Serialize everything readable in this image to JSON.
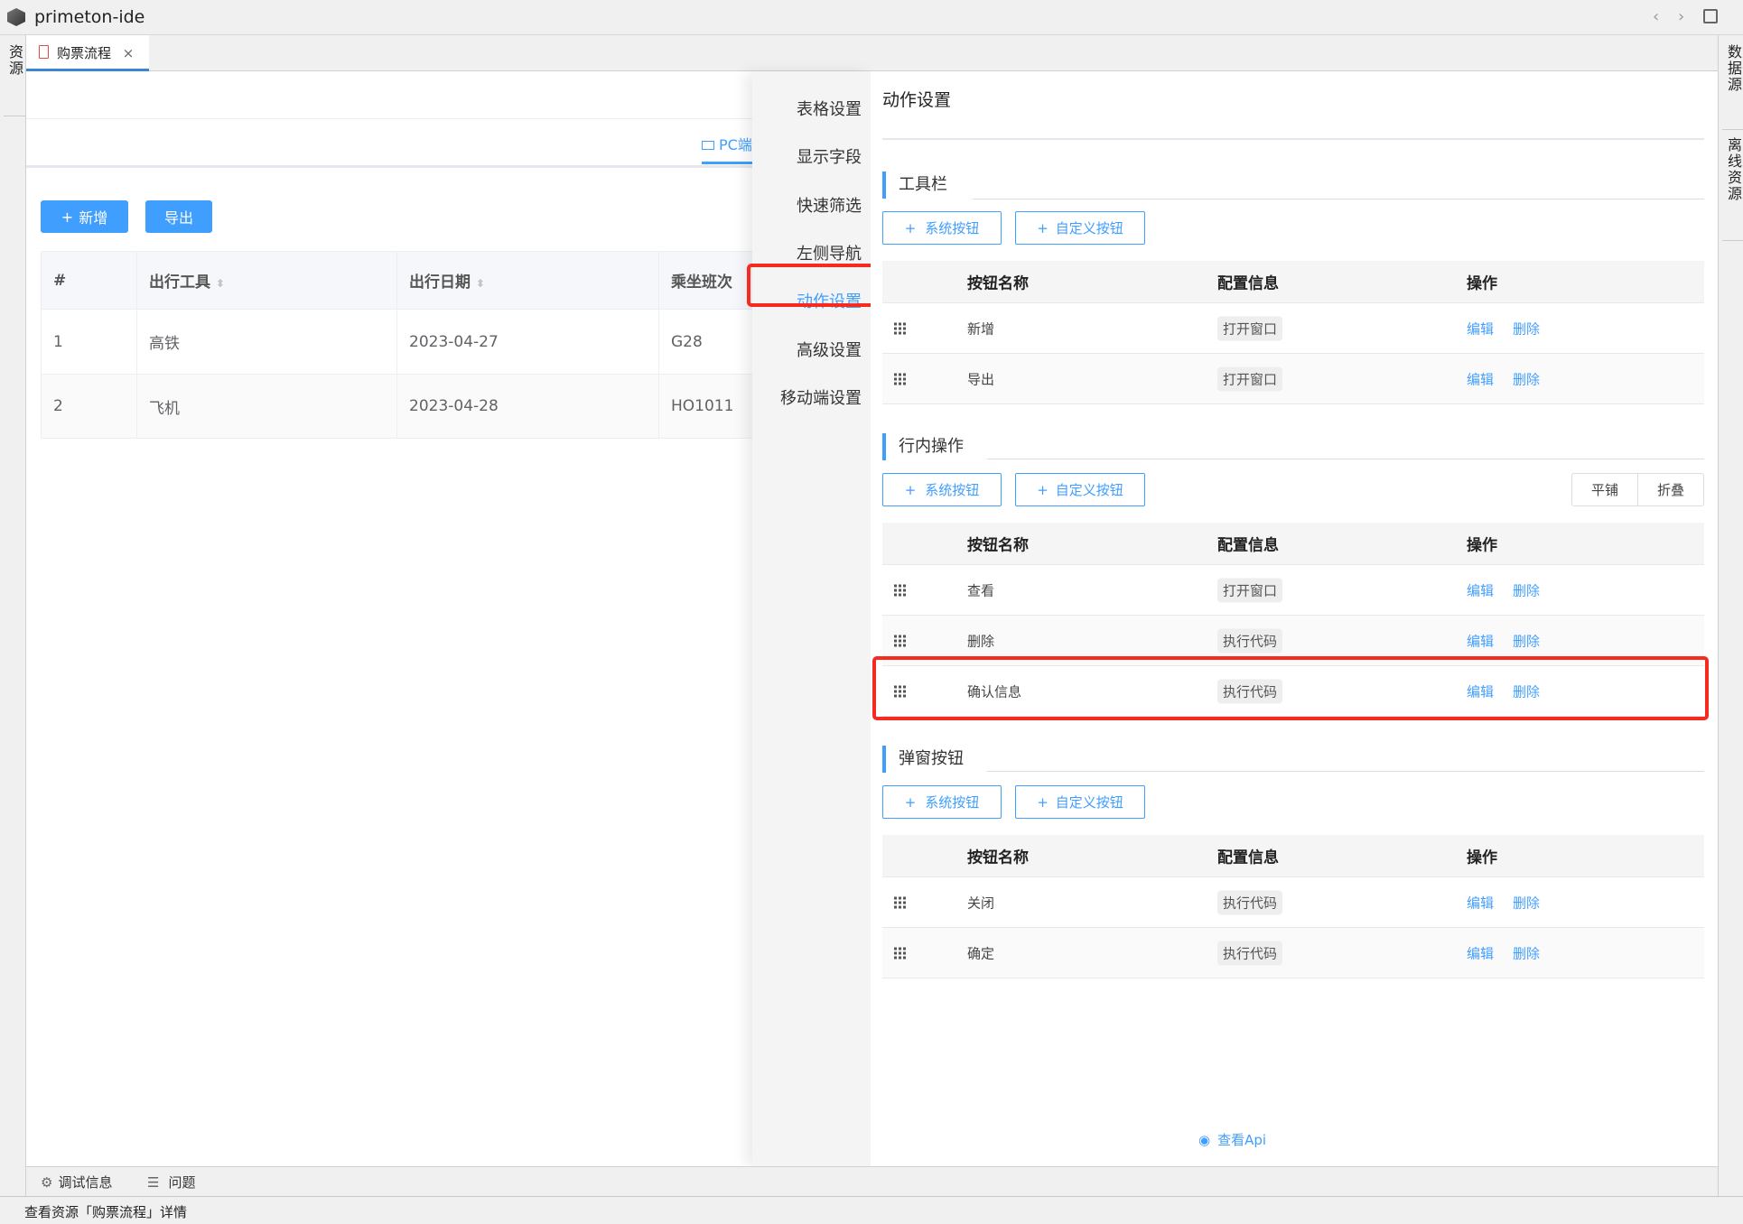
{
  "app": {
    "title": "primeton-ide"
  },
  "left_strip": {
    "label": "资源"
  },
  "right_strip": {
    "items": [
      "数据源",
      "离线资源"
    ]
  },
  "tab": {
    "label": "购票流程"
  },
  "preview": {
    "device_tab": "PC端",
    "buttons": {
      "add": "新增",
      "export": "导出"
    },
    "table": {
      "headers": [
        "#",
        "出行工具",
        "出行日期",
        "乘坐班次"
      ],
      "rows": [
        [
          "1",
          "高铁",
          "2023-04-27",
          "G28"
        ],
        [
          "2",
          "飞机",
          "2023-04-28",
          "HO1011"
        ]
      ]
    }
  },
  "drawer": {
    "nav": [
      "表格设置",
      "显示字段",
      "快速筛选",
      "左侧导航",
      "动作设置",
      "高级设置",
      "移动端设置"
    ],
    "active_nav": "动作设置",
    "title": "动作设置",
    "add_system": "系统按钮",
    "add_custom": "自定义按钮",
    "columns": {
      "name": "按钮名称",
      "config": "配置信息",
      "ops": "操作"
    },
    "edit": "编辑",
    "delete": "删除",
    "view_mode": {
      "tile": "平铺",
      "fold": "折叠"
    },
    "sections": [
      {
        "title": "工具栏",
        "rows": [
          {
            "name": "新增",
            "config": "打开窗口"
          },
          {
            "name": "导出",
            "config": "打开窗口"
          }
        ]
      },
      {
        "title": "行内操作",
        "rows": [
          {
            "name": "查看",
            "config": "打开窗口"
          },
          {
            "name": "删除",
            "config": "执行代码"
          },
          {
            "name": "确认信息",
            "config": "执行代码"
          }
        ]
      },
      {
        "title": "弹窗按钮",
        "rows": [
          {
            "name": "关闭",
            "config": "执行代码"
          },
          {
            "name": "确定",
            "config": "执行代码"
          }
        ]
      }
    ],
    "view_api": "查看Api"
  },
  "bottom": {
    "debug": "调试信息",
    "problems": "问题"
  },
  "status": "查看资源「购票流程」详情",
  "colors": {
    "accent": "#409eff",
    "highlight": "#f52a20"
  }
}
